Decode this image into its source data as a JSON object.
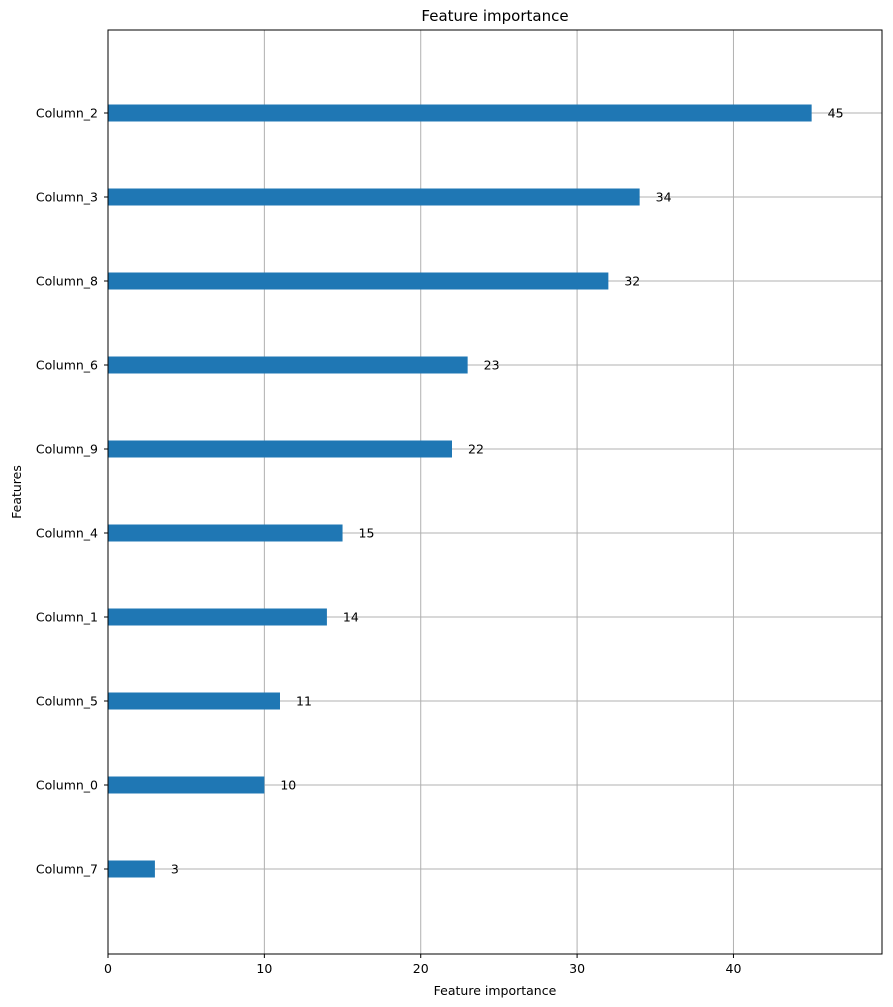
{
  "chart_data": {
    "type": "bar",
    "orientation": "horizontal",
    "title": "Feature importance",
    "xlabel": "Feature importance",
    "ylabel": "Features",
    "categories": [
      "Column_2",
      "Column_3",
      "Column_8",
      "Column_6",
      "Column_9",
      "Column_4",
      "Column_1",
      "Column_5",
      "Column_0",
      "Column_7"
    ],
    "values": [
      45,
      34,
      32,
      23,
      22,
      15,
      14,
      11,
      10,
      3
    ],
    "xlim": [
      0,
      49.5
    ],
    "xticks": [
      0,
      10,
      20,
      30,
      40
    ],
    "grid": true,
    "bar_color": "#1f77b4"
  }
}
